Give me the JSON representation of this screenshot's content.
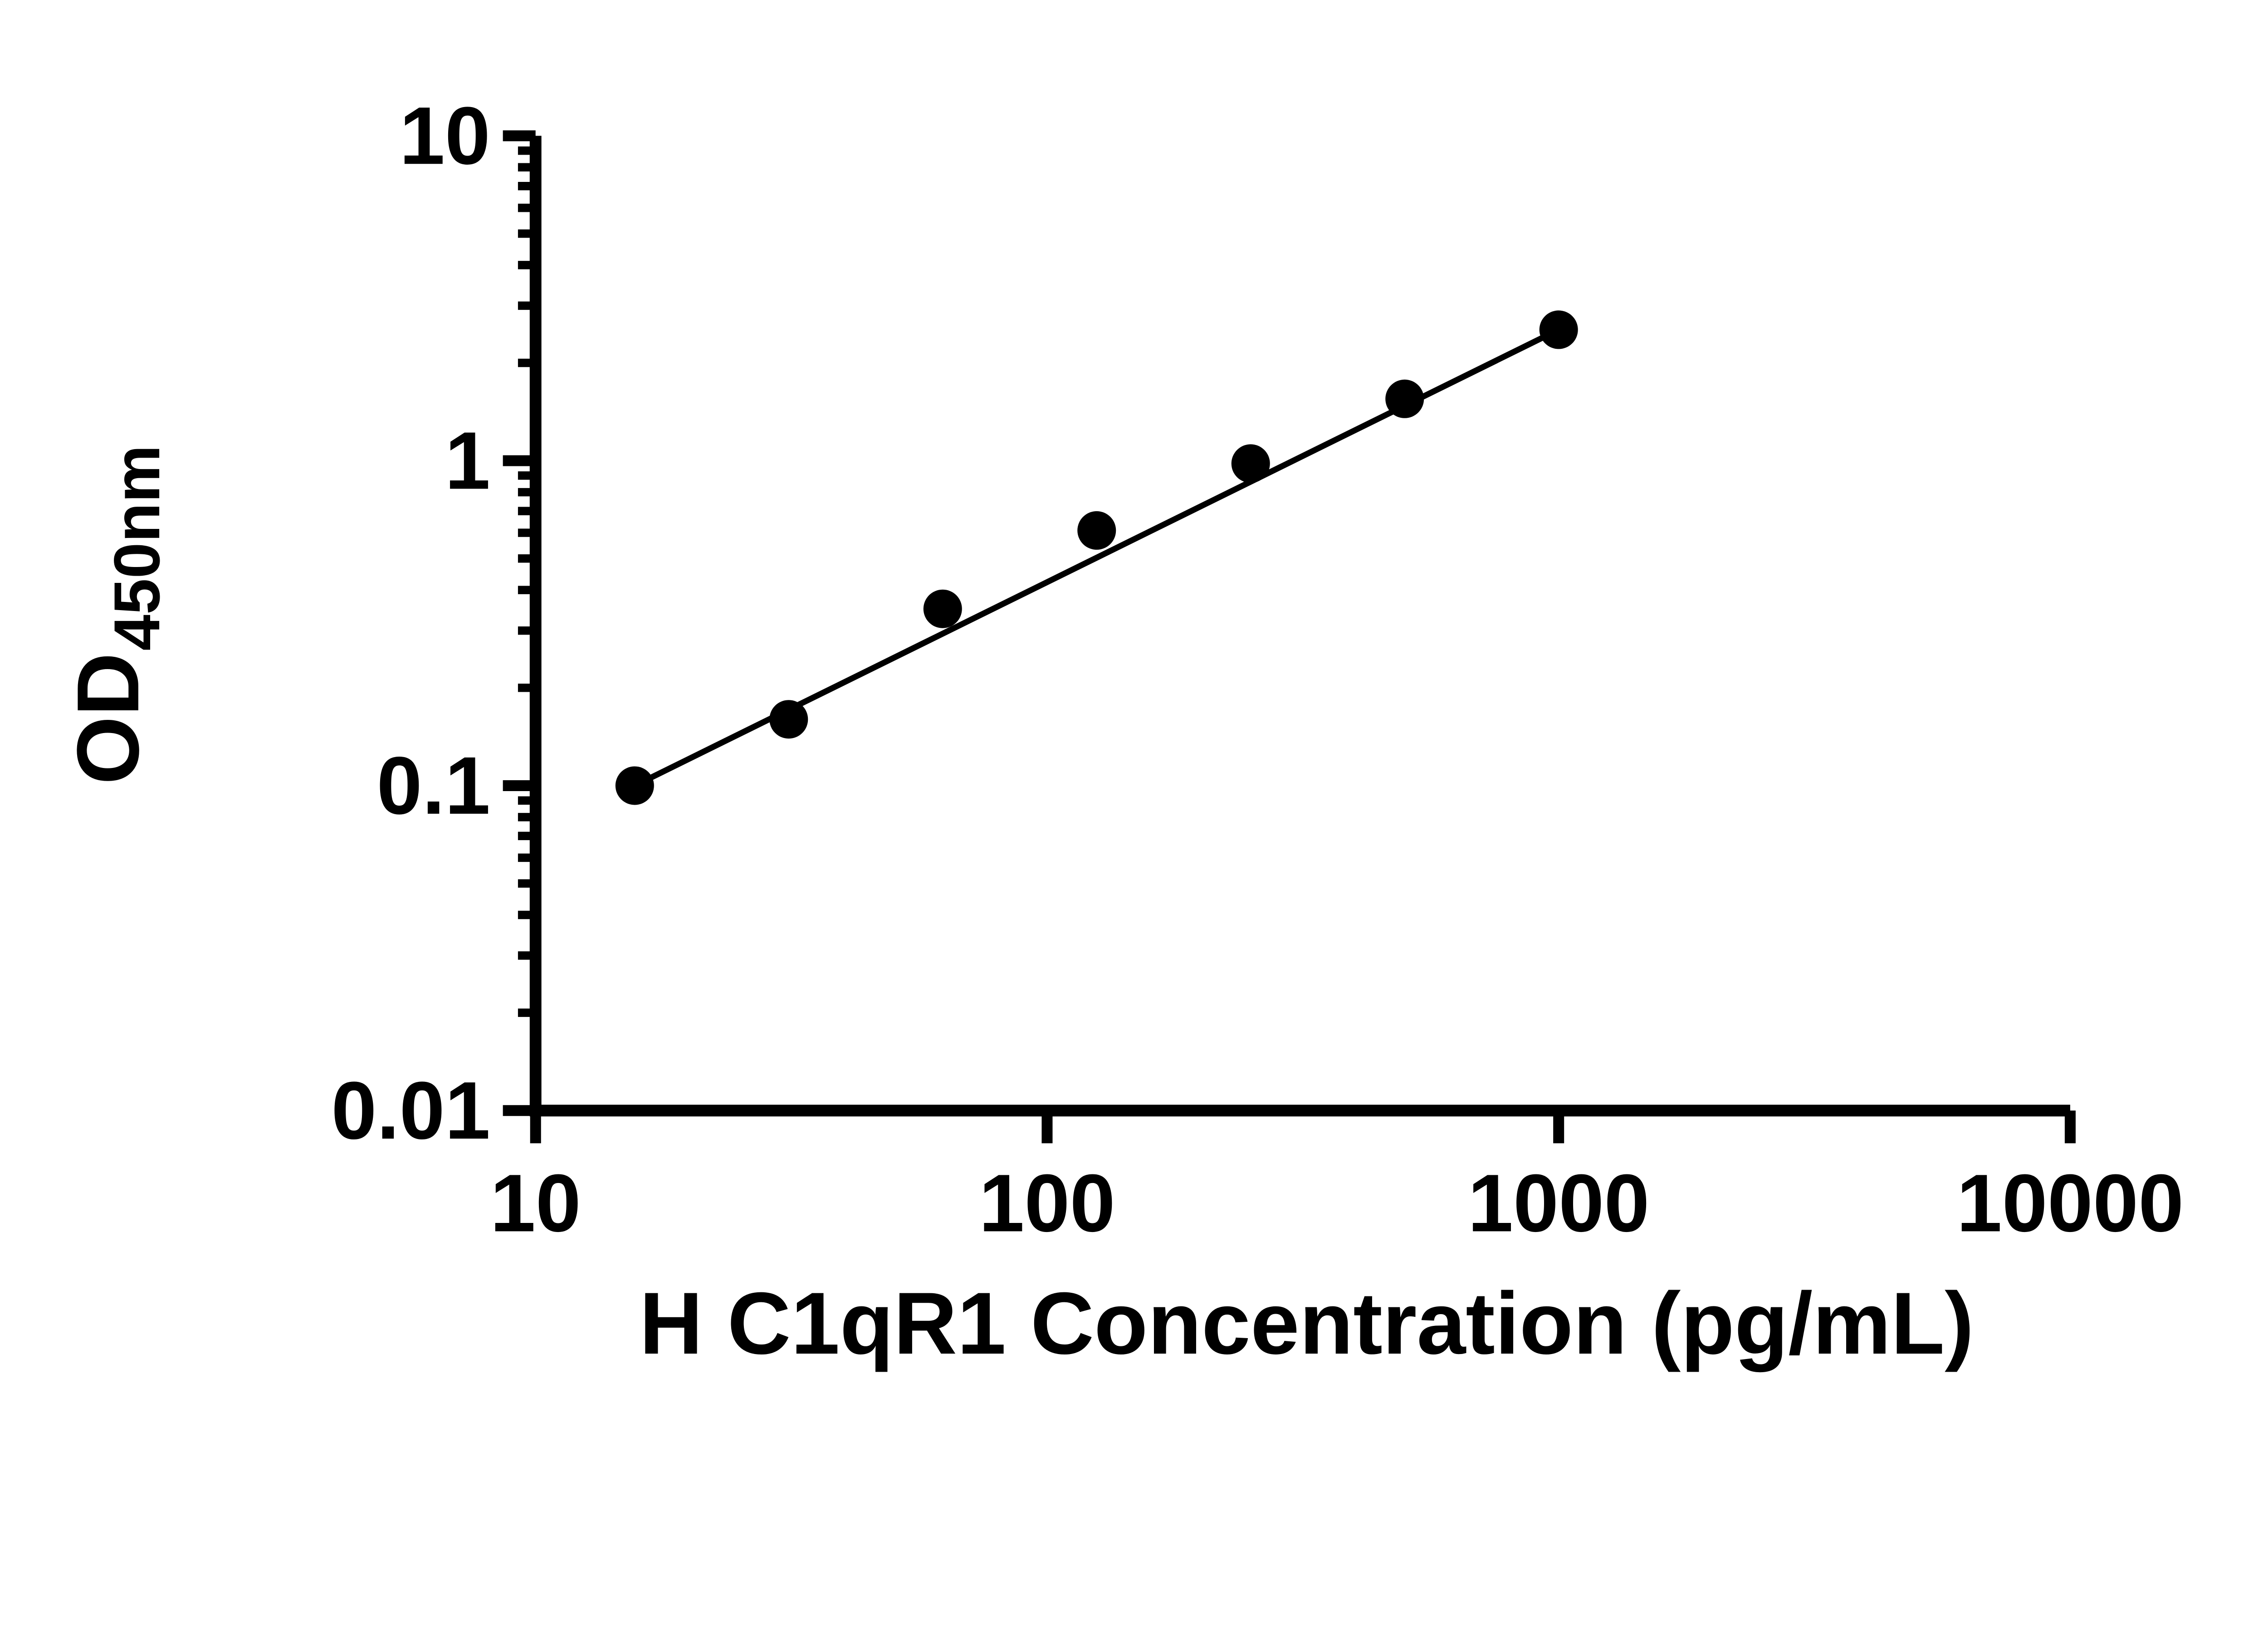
{
  "figure": {
    "background": "#ffffff",
    "axis_color": "#000000",
    "text_color": "#000000",
    "marker_color": "#000000",
    "line_color": "#000000"
  },
  "chart_data": {
    "type": "scatter",
    "title": "",
    "xlabel": "H C1qR1 Concentration (pg/mL)",
    "ylabel_main": "OD",
    "ylabel_sub": "450nm",
    "x_scale": "log",
    "y_scale": "log",
    "xlim": [
      10,
      10000
    ],
    "ylim": [
      0.01,
      10
    ],
    "x_ticks": [
      10,
      100,
      1000,
      10000
    ],
    "x_tick_labels": [
      "10",
      "100",
      "1000",
      "10000"
    ],
    "y_ticks": [
      0.01,
      0.1,
      1,
      10
    ],
    "y_tick_labels": [
      "0.01",
      "0.1",
      "1",
      "10"
    ],
    "y_minor_ticks": true,
    "x_minor_ticks": false,
    "grid": false,
    "legend": false,
    "series": [
      {
        "marker": "filled-circle",
        "x": [
          15.625,
          31.25,
          62.5,
          125,
          250,
          500,
          1000
        ],
        "y": [
          0.1,
          0.16,
          0.35,
          0.61,
          0.98,
          1.55,
          2.53
        ]
      }
    ],
    "fit_line": {
      "shape": "straight-in-loglog",
      "x1": 15.625,
      "y1": 0.1,
      "x2": 1000,
      "y2": 2.53
    }
  }
}
